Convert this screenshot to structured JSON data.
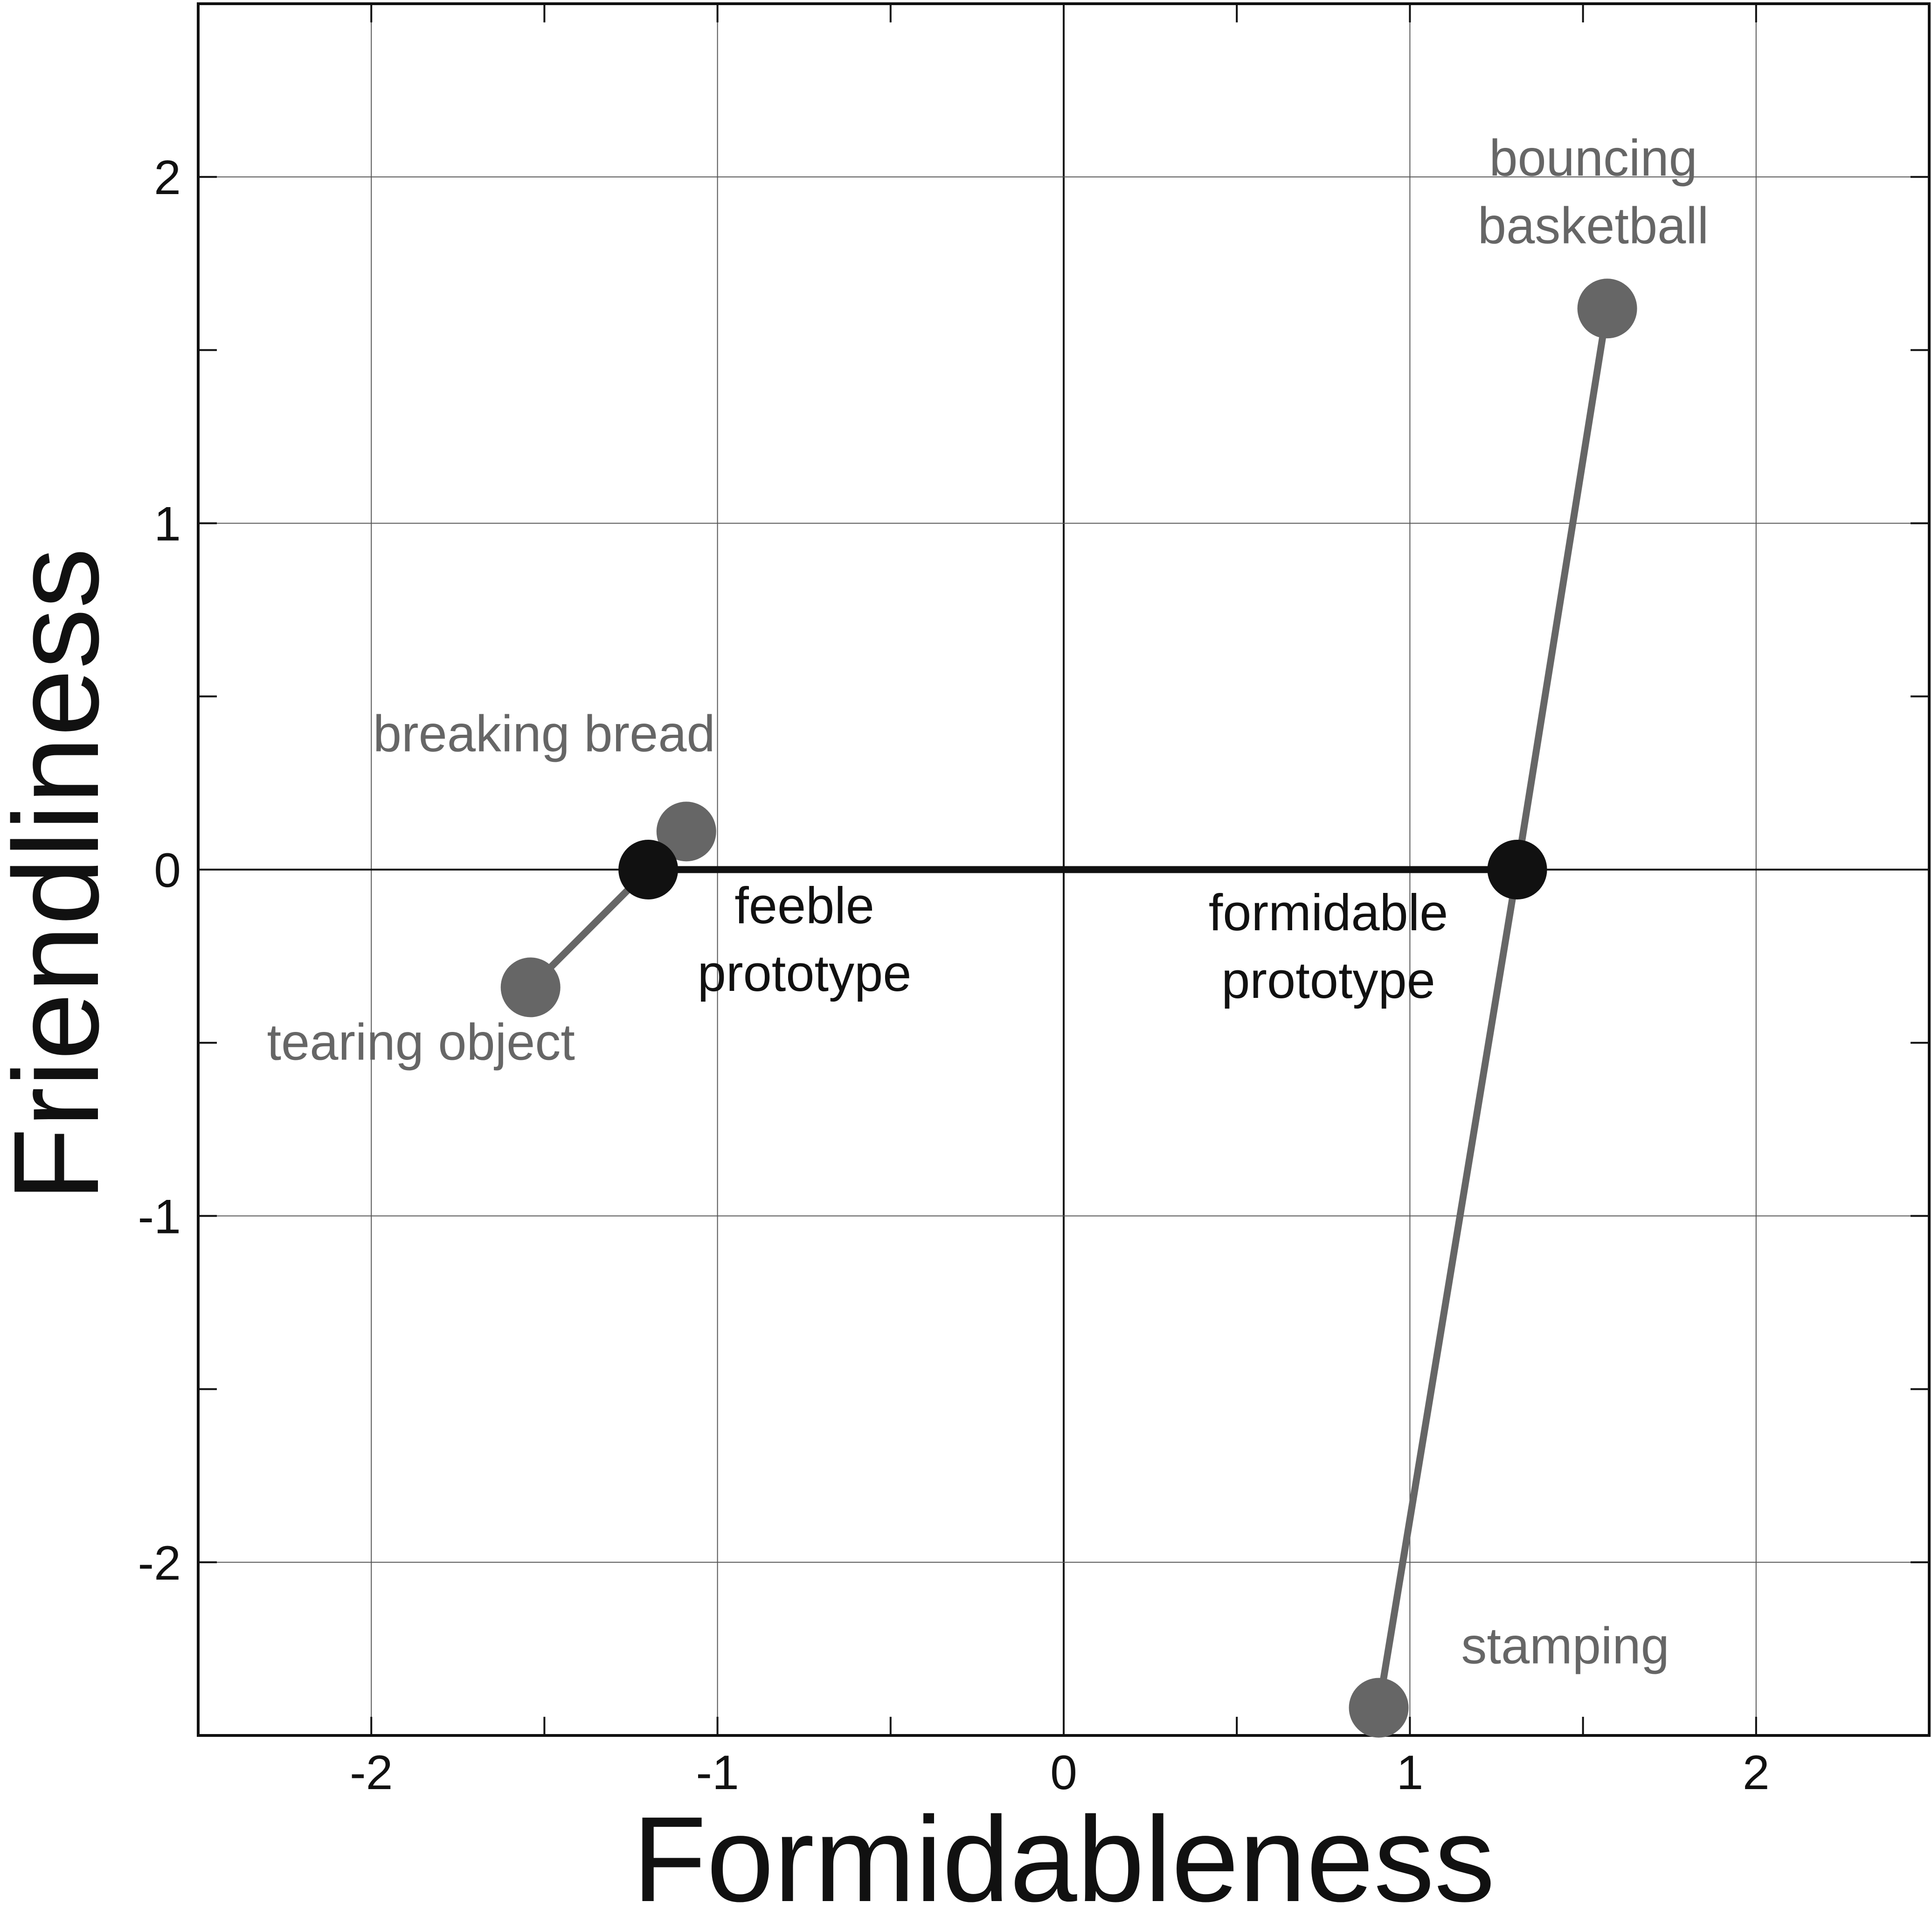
{
  "chart_data": {
    "type": "scatter",
    "xlabel": "Formidableness",
    "ylabel": "Friendliness",
    "xlim": [
      -2.5,
      2.5
    ],
    "ylim": [
      -2.5,
      2.5
    ],
    "xticks": [
      -2,
      -1,
      0,
      1,
      2
    ],
    "yticks": [
      -2,
      -1,
      0,
      1,
      2
    ],
    "xtick_labels": [
      "-2",
      "-1",
      "0",
      "1",
      "2"
    ],
    "ytick_labels": [
      "-2",
      "-1",
      "0",
      "1",
      "2"
    ],
    "grid": true,
    "minor_tick_step": 0.5,
    "points": [
      {
        "id": "feeble",
        "label_lines": [
          "feeble",
          "prototype"
        ],
        "x": -1.2,
        "y": 0.0,
        "color": "#111111",
        "label_color": "#111111"
      },
      {
        "id": "formidable",
        "label_lines": [
          "formidable",
          "prototype"
        ],
        "x": 1.31,
        "y": 0.0,
        "color": "#111111",
        "label_color": "#111111"
      },
      {
        "id": "breaking-bread",
        "label_lines": [
          "breaking bread"
        ],
        "x": -1.09,
        "y": 0.11,
        "color": "#666666",
        "label_color": "#666666"
      },
      {
        "id": "tearing-object",
        "label_lines": [
          "tearing object"
        ],
        "x": -1.54,
        "y": -0.34,
        "color": "#666666",
        "label_color": "#666666"
      },
      {
        "id": "bouncing-basketball",
        "label_lines": [
          "bouncing",
          "basketball"
        ],
        "x": 1.57,
        "y": 1.62,
        "color": "#666666",
        "label_color": "#666666"
      },
      {
        "id": "stamping",
        "label_lines": [
          "stamping"
        ],
        "x": 0.91,
        "y": -2.42,
        "color": "#666666",
        "label_color": "#666666"
      }
    ],
    "connections": [
      {
        "from": "feeble",
        "to": "formidable",
        "color": "#111111"
      },
      {
        "from": "feeble",
        "to": "breaking-bread",
        "color": "#666666"
      },
      {
        "from": "feeble",
        "to": "tearing-object",
        "color": "#666666"
      },
      {
        "from": "formidable",
        "to": "bouncing-basketball",
        "color": "#666666"
      },
      {
        "from": "formidable",
        "to": "stamping",
        "color": "#666666"
      }
    ]
  }
}
